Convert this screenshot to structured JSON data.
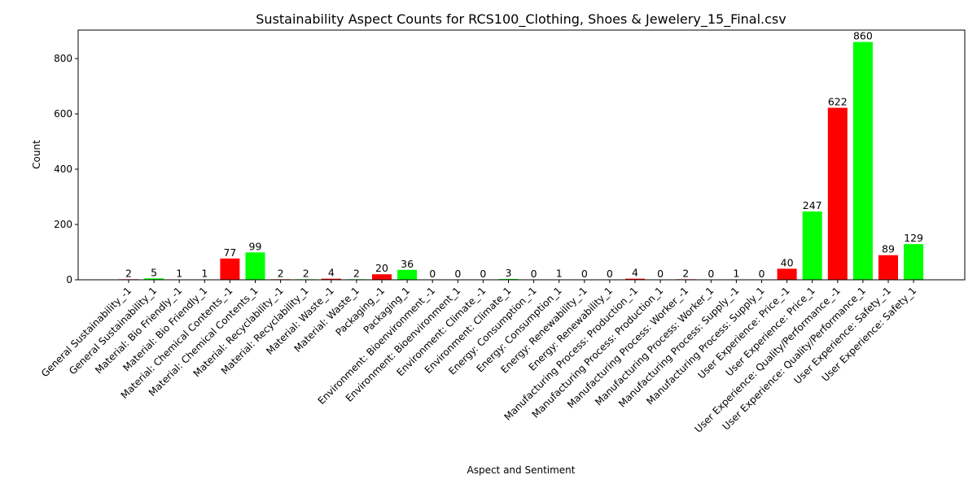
{
  "chart_data": {
    "type": "bar",
    "title": "Sustainability Aspect Counts for RCS100_Clothing, Shoes & Jewelery_15_Final.csv",
    "xlabel": "Aspect and Sentiment",
    "ylabel": "Count",
    "ylim": [
      0,
      903
    ],
    "yticks": [
      0,
      200,
      400,
      600,
      800
    ],
    "grid": false,
    "colors": {
      "negative": "#ff0000",
      "positive": "#00ff00"
    },
    "categories": [
      "General Sustainability_-1",
      "General Sustainability_1",
      "Material: Bio Friendly_-1",
      "Material: Bio Friendly_1",
      "Material: Chemical Contents_-1",
      "Material: Chemical Contents_1",
      "Material: Recyclability_-1",
      "Material: Recyclability_1",
      "Material: Waste_-1",
      "Material: Waste_1",
      "Packaging_-1",
      "Packaging_1",
      "Environment: Bioenvironment_-1",
      "Environment: Bioenvironment_1",
      "Environment: Climate_-1",
      "Environment: Climate_1",
      "Energy: Consumption_-1",
      "Energy: Consumption_1",
      "Energy: Renewability_-1",
      "Energy: Renewability_1",
      "Manufacturing Process: Production_-1",
      "Manufacturing Process: Production_1",
      "Manufacturing Process: Worker_-1",
      "Manufacturing Process: Worker_1",
      "Manufacturing Process: Supply_-1",
      "Manufacturing Process: Supply_1",
      "User Experience: Price_-1",
      "User Experience: Price_1",
      "User Experience: Quality/Performance_-1",
      "User Experience: Quality/Performance_1",
      "User Experience: Safety_-1",
      "User Experience: Safety_1"
    ],
    "values": [
      2,
      5,
      1,
      1,
      77,
      99,
      2,
      2,
      4,
      2,
      20,
      36,
      0,
      0,
      0,
      3,
      0,
      1,
      0,
      0,
      4,
      0,
      2,
      0,
      1,
      0,
      40,
      247,
      622,
      860,
      89,
      129
    ]
  }
}
